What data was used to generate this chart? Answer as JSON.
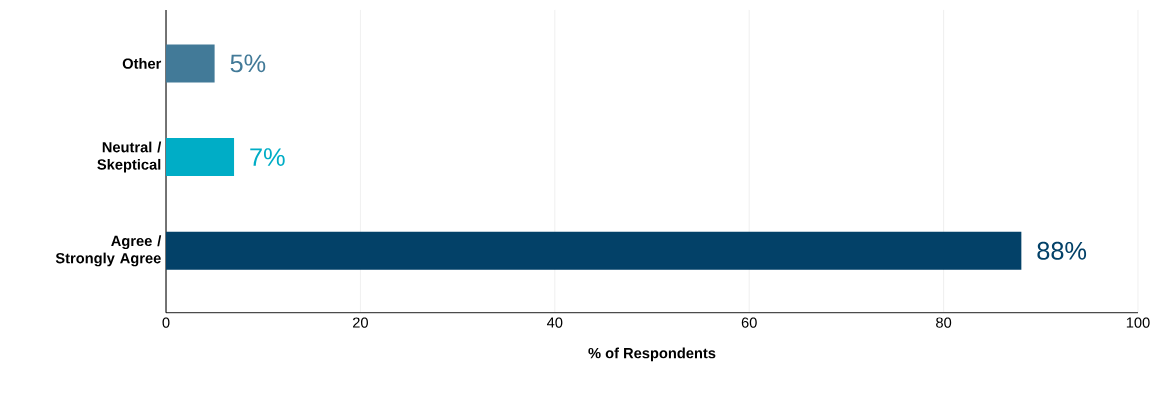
{
  "chart_data": {
    "type": "bar",
    "orientation": "horizontal",
    "xlabel": "% of Respondents",
    "categories": [
      "Other",
      "Neutral / Skeptical",
      "Agree / Strongly Agree"
    ],
    "values": [
      5,
      7,
      88
    ],
    "colors": [
      "#427a98",
      "#00adc6",
      "#034168"
    ],
    "value_labels": [
      "5%",
      "7%",
      "88%"
    ],
    "xlim": [
      0,
      100
    ],
    "xticks": [
      0,
      20,
      40,
      60,
      80,
      100
    ],
    "grid": "x"
  }
}
